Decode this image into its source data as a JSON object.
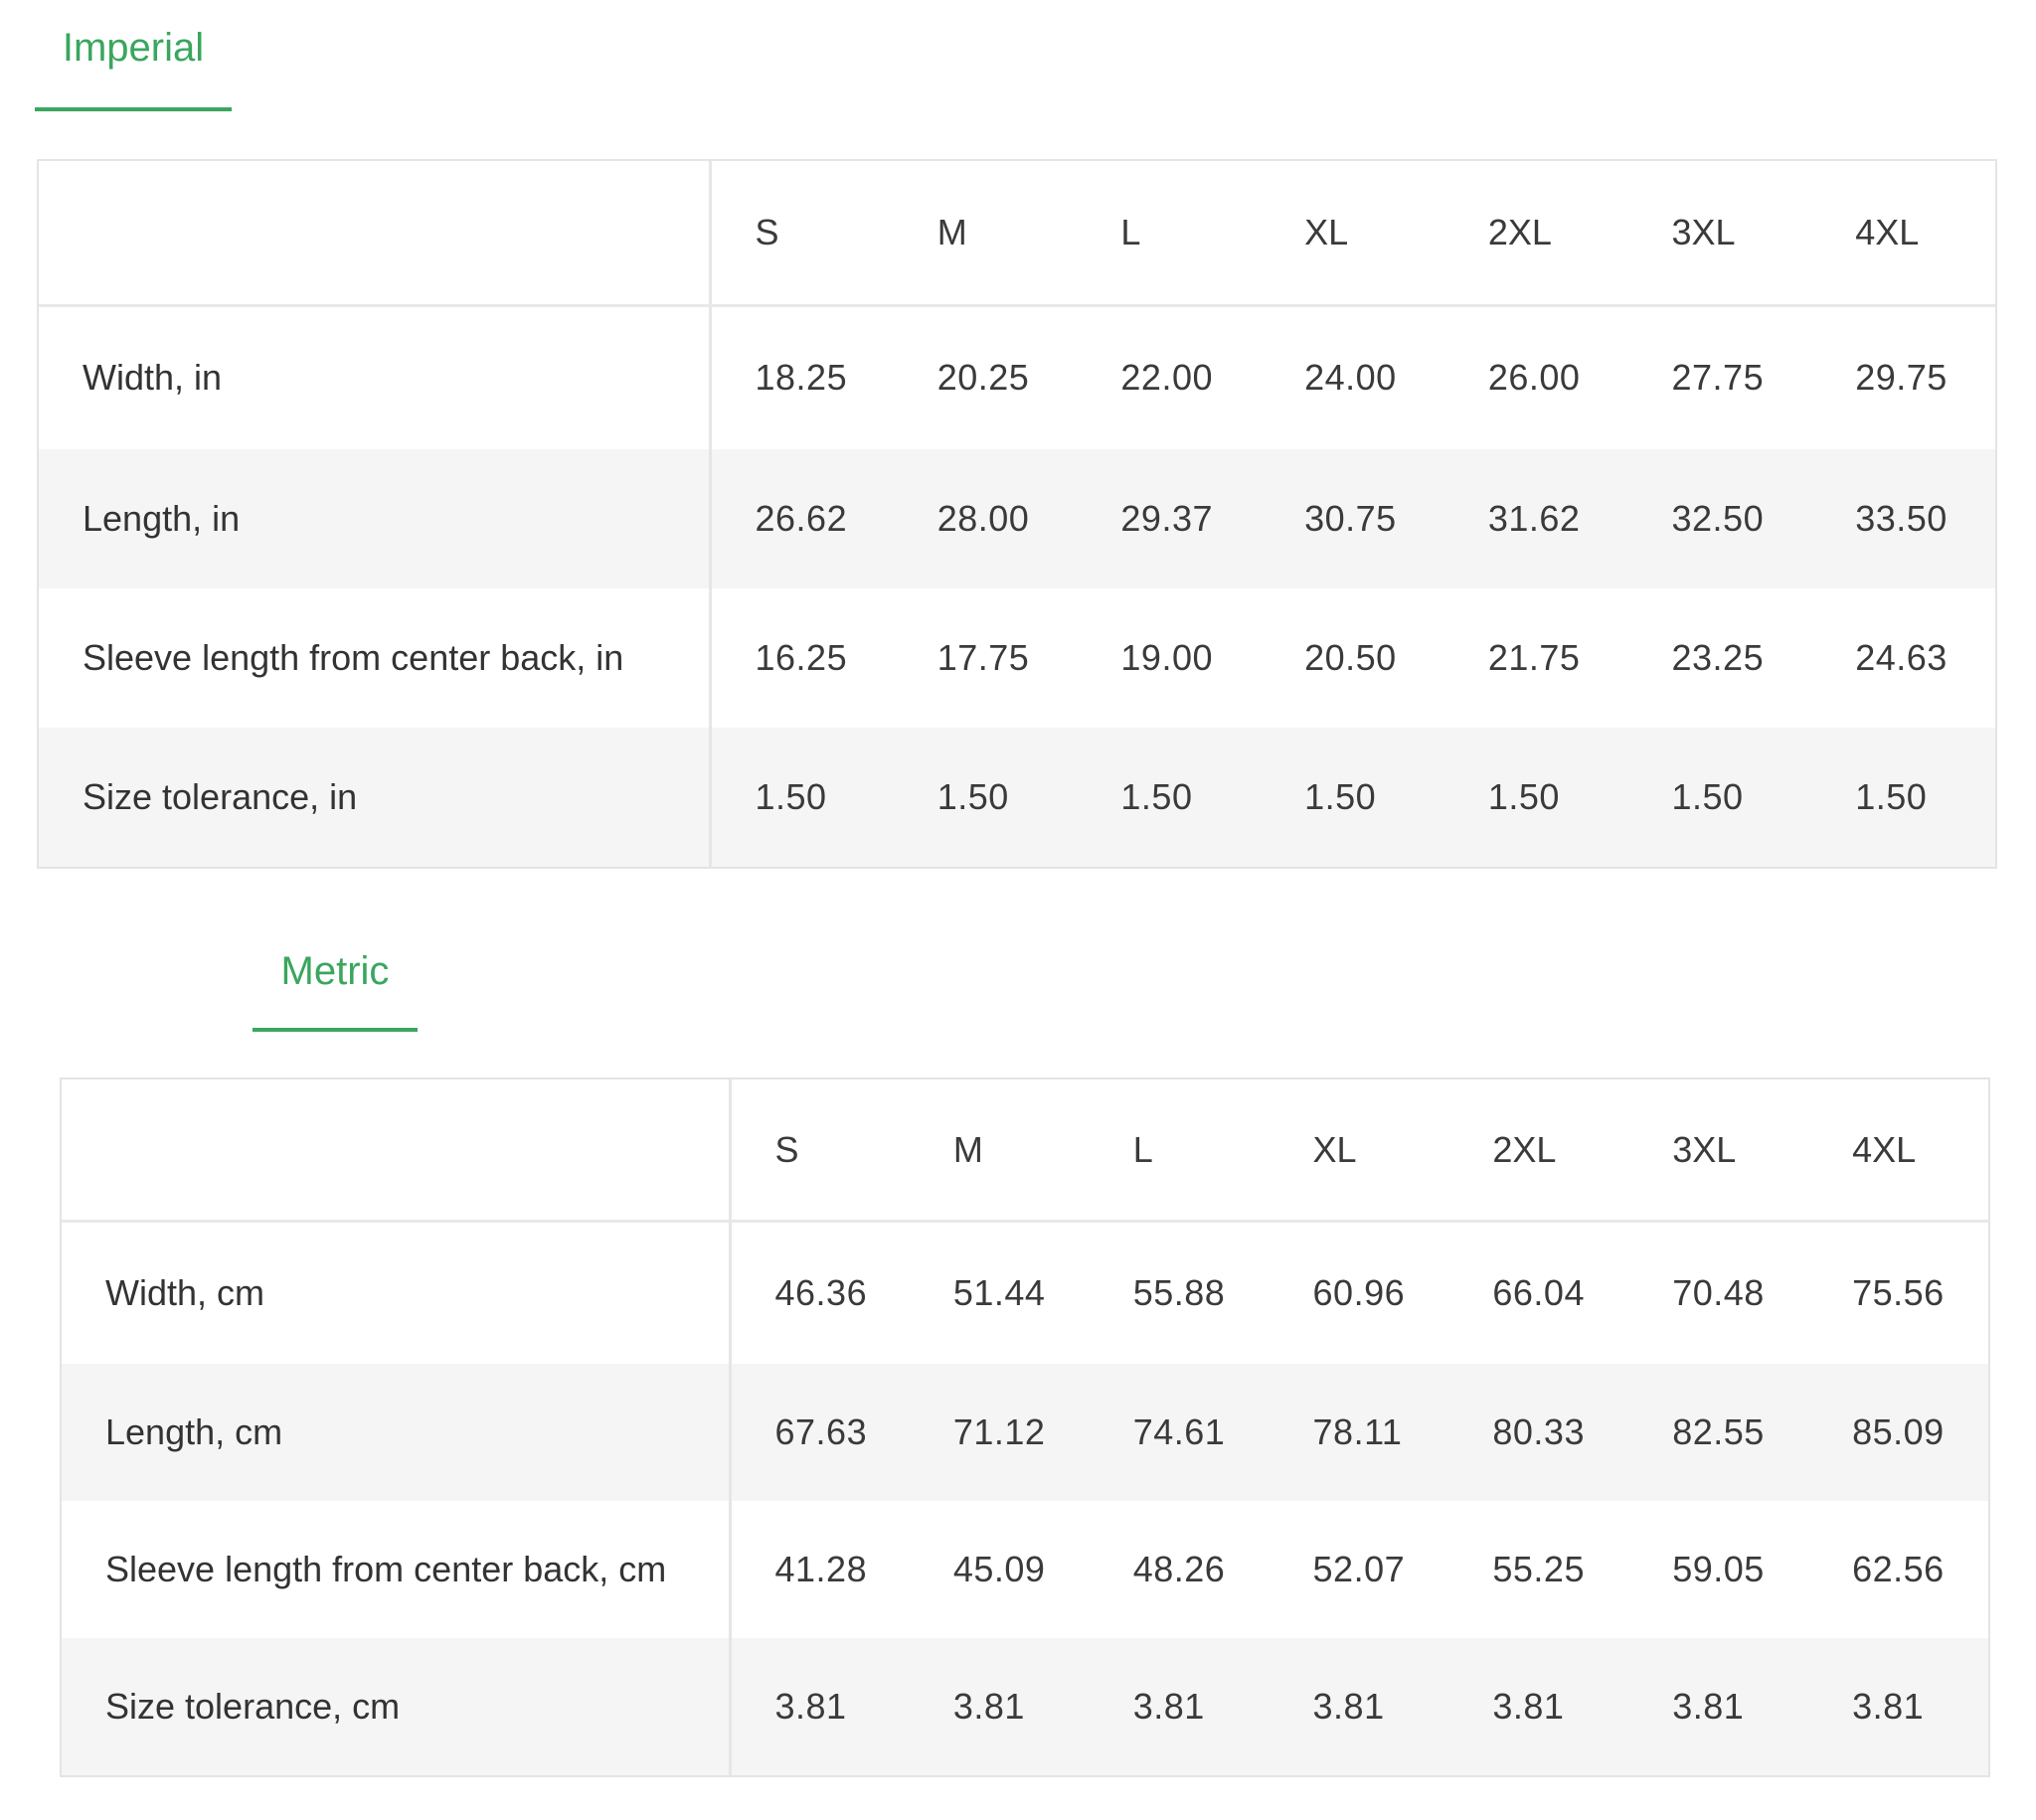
{
  "tabs": {
    "imperial": "Imperial",
    "metric": "Metric"
  },
  "imperial": {
    "sizes": [
      "S",
      "M",
      "L",
      "XL",
      "2XL",
      "3XL",
      "4XL"
    ],
    "rows": [
      {
        "label": "Width, in",
        "values": [
          "18.25",
          "20.25",
          "22.00",
          "24.00",
          "26.00",
          "27.75",
          "29.75"
        ]
      },
      {
        "label": "Length, in",
        "values": [
          "26.62",
          "28.00",
          "29.37",
          "30.75",
          "31.62",
          "32.50",
          "33.50"
        ]
      },
      {
        "label": "Sleeve length from center back, in",
        "values": [
          "16.25",
          "17.75",
          "19.00",
          "20.50",
          "21.75",
          "23.25",
          "24.63"
        ]
      },
      {
        "label": "Size tolerance, in",
        "values": [
          "1.50",
          "1.50",
          "1.50",
          "1.50",
          "1.50",
          "1.50",
          "1.50"
        ]
      }
    ]
  },
  "metric": {
    "sizes": [
      "S",
      "M",
      "L",
      "XL",
      "2XL",
      "3XL",
      "4XL"
    ],
    "rows": [
      {
        "label": "Width, cm",
        "values": [
          "46.36",
          "51.44",
          "55.88",
          "60.96",
          "66.04",
          "70.48",
          "75.56"
        ]
      },
      {
        "label": "Length, cm",
        "values": [
          "67.63",
          "71.12",
          "74.61",
          "78.11",
          "80.33",
          "82.55",
          "85.09"
        ]
      },
      {
        "label": "Sleeve length from center back, cm",
        "values": [
          "41.28",
          "45.09",
          "48.26",
          "52.07",
          "55.25",
          "59.05",
          "62.56"
        ]
      },
      {
        "label": "Size tolerance, cm",
        "values": [
          "3.81",
          "3.81",
          "3.81",
          "3.81",
          "3.81",
          "3.81",
          "3.81"
        ]
      }
    ]
  },
  "colors": {
    "accent": "#3aa65f",
    "stripe": "#f5f5f5",
    "border": "#e4e4e4"
  }
}
